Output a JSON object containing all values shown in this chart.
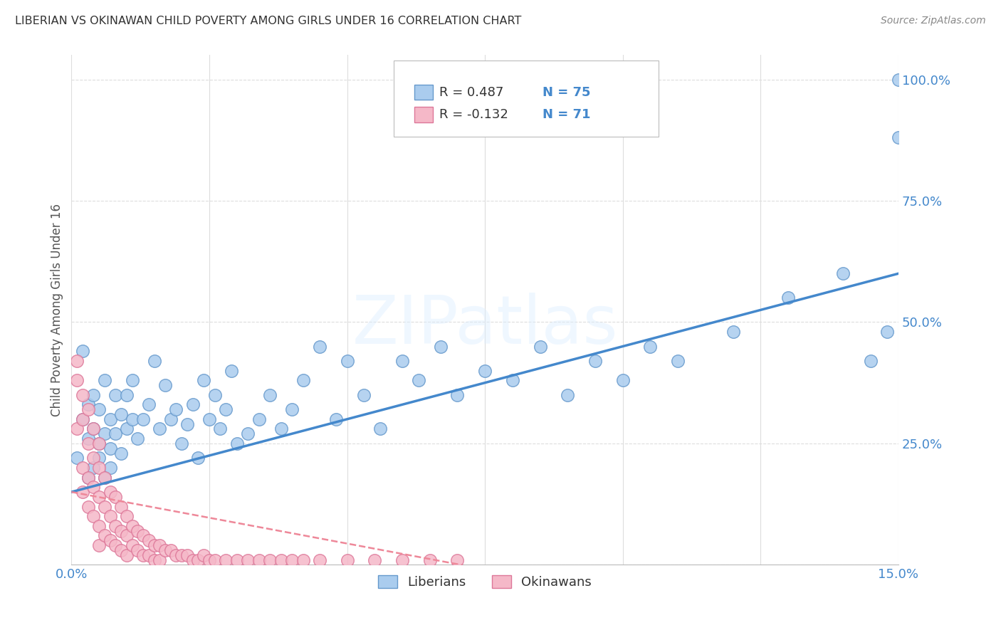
{
  "title": "LIBERIAN VS OKINAWAN CHILD POVERTY AMONG GIRLS UNDER 16 CORRELATION CHART",
  "source": "Source: ZipAtlas.com",
  "ylabel": "Child Poverty Among Girls Under 16",
  "watermark": "ZIPatlas",
  "liberian_R": 0.487,
  "liberian_N": 75,
  "okinawan_R": -0.132,
  "okinawan_N": 71,
  "liberian_color": "#aaccee",
  "liberian_edge_color": "#6699cc",
  "okinawan_color": "#f5b8c8",
  "okinawan_edge_color": "#dd7799",
  "liberian_line_color": "#4488cc",
  "okinawan_line_color": "#ee8899",
  "background_color": "#ffffff",
  "grid_color": "#dddddd",
  "axis_tick_color": "#4488cc",
  "xlim": [
    0.0,
    0.15
  ],
  "ylim": [
    0.0,
    1.05
  ],
  "liberian_scatter_x": [
    0.001,
    0.002,
    0.002,
    0.003,
    0.003,
    0.004,
    0.004,
    0.005,
    0.005,
    0.006,
    0.006,
    0.007,
    0.007,
    0.008,
    0.008,
    0.009,
    0.009,
    0.01,
    0.01,
    0.011,
    0.011,
    0.012,
    0.013,
    0.014,
    0.015,
    0.016,
    0.017,
    0.018,
    0.019,
    0.02,
    0.021,
    0.022,
    0.023,
    0.024,
    0.025,
    0.026,
    0.027,
    0.028,
    0.029,
    0.03,
    0.032,
    0.034,
    0.036,
    0.038,
    0.04,
    0.042,
    0.045,
    0.048,
    0.05,
    0.053,
    0.056,
    0.06,
    0.063,
    0.067,
    0.07,
    0.075,
    0.08,
    0.085,
    0.09,
    0.095,
    0.1,
    0.105,
    0.11,
    0.12,
    0.13,
    0.14,
    0.145,
    0.148,
    0.15,
    0.15,
    0.003,
    0.004,
    0.005,
    0.006,
    0.007
  ],
  "liberian_scatter_y": [
    0.22,
    0.3,
    0.44,
    0.26,
    0.33,
    0.28,
    0.35,
    0.25,
    0.32,
    0.27,
    0.38,
    0.24,
    0.3,
    0.27,
    0.35,
    0.23,
    0.31,
    0.28,
    0.35,
    0.3,
    0.38,
    0.26,
    0.3,
    0.33,
    0.42,
    0.28,
    0.37,
    0.3,
    0.32,
    0.25,
    0.29,
    0.33,
    0.22,
    0.38,
    0.3,
    0.35,
    0.28,
    0.32,
    0.4,
    0.25,
    0.27,
    0.3,
    0.35,
    0.28,
    0.32,
    0.38,
    0.45,
    0.3,
    0.42,
    0.35,
    0.28,
    0.42,
    0.38,
    0.45,
    0.35,
    0.4,
    0.38,
    0.45,
    0.35,
    0.42,
    0.38,
    0.45,
    0.42,
    0.48,
    0.55,
    0.6,
    0.42,
    0.48,
    0.88,
    1.0,
    0.18,
    0.2,
    0.22,
    0.18,
    0.2
  ],
  "okinawan_scatter_x": [
    0.001,
    0.001,
    0.002,
    0.002,
    0.002,
    0.003,
    0.003,
    0.003,
    0.004,
    0.004,
    0.004,
    0.005,
    0.005,
    0.005,
    0.005,
    0.006,
    0.006,
    0.006,
    0.007,
    0.007,
    0.007,
    0.008,
    0.008,
    0.008,
    0.009,
    0.009,
    0.009,
    0.01,
    0.01,
    0.01,
    0.011,
    0.011,
    0.012,
    0.012,
    0.013,
    0.013,
    0.014,
    0.014,
    0.015,
    0.015,
    0.016,
    0.016,
    0.017,
    0.018,
    0.019,
    0.02,
    0.021,
    0.022,
    0.023,
    0.024,
    0.025,
    0.026,
    0.028,
    0.03,
    0.032,
    0.034,
    0.036,
    0.038,
    0.04,
    0.042,
    0.045,
    0.05,
    0.055,
    0.06,
    0.065,
    0.07,
    0.001,
    0.002,
    0.003,
    0.004,
    0.005
  ],
  "okinawan_scatter_y": [
    0.38,
    0.28,
    0.3,
    0.2,
    0.15,
    0.25,
    0.18,
    0.12,
    0.22,
    0.16,
    0.1,
    0.2,
    0.14,
    0.08,
    0.04,
    0.18,
    0.12,
    0.06,
    0.15,
    0.1,
    0.05,
    0.14,
    0.08,
    0.04,
    0.12,
    0.07,
    0.03,
    0.1,
    0.06,
    0.02,
    0.08,
    0.04,
    0.07,
    0.03,
    0.06,
    0.02,
    0.05,
    0.02,
    0.04,
    0.01,
    0.04,
    0.01,
    0.03,
    0.03,
    0.02,
    0.02,
    0.02,
    0.01,
    0.01,
    0.02,
    0.01,
    0.01,
    0.01,
    0.01,
    0.01,
    0.01,
    0.01,
    0.01,
    0.01,
    0.01,
    0.01,
    0.01,
    0.01,
    0.01,
    0.01,
    0.01,
    0.42,
    0.35,
    0.32,
    0.28,
    0.25
  ]
}
